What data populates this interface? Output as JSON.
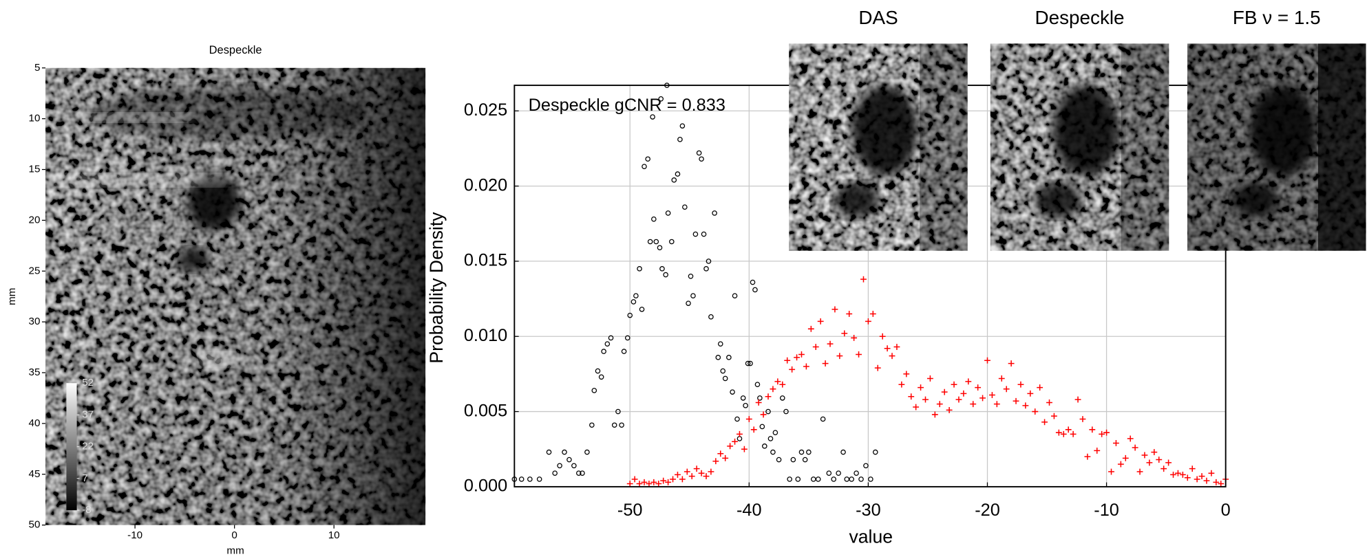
{
  "chart_data": [
    {
      "type": "image",
      "title": "Despeckle",
      "xlabel": "mm",
      "ylabel": "mm",
      "xlim": [
        -19,
        19.2
      ],
      "xticks": [
        -10,
        0,
        10
      ],
      "ylim": [
        5,
        50
      ],
      "yticks": [
        5,
        10,
        15,
        20,
        25,
        30,
        35,
        40,
        45,
        50
      ],
      "y_reversed": true,
      "colormap": "gray",
      "clim": [
        -8,
        52
      ],
      "colorbar_ticks": [
        52,
        37,
        22,
        7,
        -8
      ]
    },
    {
      "type": "scatter",
      "xlabel": "value",
      "ylabel": "Probability Density",
      "annotation": "Despeckle gCNR = 0.833",
      "xlim": [
        -59.7,
        0
      ],
      "xticks": [
        -50,
        -40,
        -30,
        -20,
        -10,
        0
      ],
      "ylim": [
        0,
        0.0267
      ],
      "yticks": [
        {
          "value": 0,
          "label": "0.000"
        },
        0.005,
        {
          "value": 0.01,
          "label": "0.010"
        },
        0.015,
        {
          "value": 0.02,
          "label": "0.020"
        },
        0.025
      ],
      "grid": true,
      "series": [
        {
          "color": "#000000",
          "marker": "circle",
          "x": [
            -59.7,
            -59.1,
            -58.4,
            -57.6,
            -56.8,
            -56.3,
            -55.9,
            -55.5,
            -55.1,
            -54.7,
            -54.3,
            -54.0,
            -53.6,
            -53.2,
            -53.0,
            -52.7,
            -52.4,
            -52.2,
            -51.9,
            -51.6,
            -51.3,
            -51.0,
            -50.7,
            -50.5,
            -50.2,
            -50.0,
            -49.7,
            -49.5,
            -49.2,
            -49.0,
            -48.8,
            -48.5,
            -48.3,
            -48.1,
            -48.0,
            -47.8,
            -47.5,
            -47.4,
            -47.3,
            -47.0,
            -46.9,
            -46.8,
            -46.5,
            -46.3,
            -46.0,
            -45.8,
            -45.6,
            -45.4,
            -45.1,
            -44.9,
            -44.7,
            -44.5,
            -44.2,
            -44.0,
            -43.8,
            -43.6,
            -43.4,
            -43.2,
            -42.9,
            -42.6,
            -42.4,
            -42.2,
            -42.0,
            -41.7,
            -41.4,
            -41.2,
            -41.0,
            -40.8,
            -40.5,
            -40.3,
            -40.1,
            -39.9,
            -39.7,
            -39.5,
            -39.3,
            -39.1,
            -38.9,
            -38.7,
            -38.4,
            -38.2,
            -38.0,
            -37.8,
            -37.5,
            -37.2,
            -36.9,
            -36.6,
            -36.3,
            -35.9,
            -35.6,
            -35.3,
            -35.0,
            -34.6,
            -34.2,
            -33.8,
            -33.3,
            -32.9,
            -32.5,
            -32.1,
            -31.8,
            -31.4,
            -31.0,
            -30.6,
            -30.2,
            -29.8,
            -29.4
          ],
          "values": [
            0.0005,
            0.0005,
            0.0005,
            0.0005,
            0.0023,
            0.0009,
            0.0014,
            0.0023,
            0.0018,
            0.0014,
            0.0009,
            0.0009,
            0.0023,
            0.0041,
            0.0064,
            0.0077,
            0.0073,
            0.009,
            0.0095,
            0.0099,
            0.0041,
            0.005,
            0.0041,
            0.009,
            0.0099,
            0.0114,
            0.0123,
            0.0127,
            0.0145,
            0.0118,
            0.0213,
            0.0218,
            0.0163,
            0.0246,
            0.0178,
            0.0163,
            0.0159,
            0.0258,
            0.0145,
            0.0141,
            0.0267,
            0.0182,
            0.0163,
            0.0204,
            0.0208,
            0.0231,
            0.024,
            0.0186,
            0.0122,
            0.014,
            0.0127,
            0.0168,
            0.0222,
            0.0218,
            0.0168,
            0.0145,
            0.015,
            0.0113,
            0.0182,
            0.0086,
            0.0095,
            0.0077,
            0.0072,
            0.0086,
            0.0063,
            0.0127,
            0.0045,
            0.0032,
            0.0059,
            0.0054,
            0.0082,
            0.0082,
            0.0136,
            0.0131,
            0.0068,
            0.0059,
            0.004,
            0.0027,
            0.005,
            0.0032,
            0.0023,
            0.0036,
            0.0018,
            0.0059,
            0.005,
            0.0005,
            0.0018,
            0.0005,
            0.0023,
            0.0018,
            0.0023,
            0.0005,
            0.0005,
            0.0045,
            0.0009,
            0.0005,
            0.0009,
            0.0023,
            0.0005,
            0.0005,
            0.0009,
            0.0005,
            0.0014,
            0.0005,
            0.0023
          ]
        },
        {
          "color": "#ff0000",
          "marker": "plus",
          "x": [
            -50.0,
            -49.6,
            -49.2,
            -48.8,
            -48.4,
            -48.0,
            -47.6,
            -47.2,
            -46.8,
            -46.4,
            -46.0,
            -45.6,
            -45.2,
            -44.8,
            -44.4,
            -44.0,
            -43.6,
            -43.2,
            -42.8,
            -42.4,
            -42.0,
            -41.6,
            -41.2,
            -40.8,
            -40.4,
            -40.0,
            -39.6,
            -39.2,
            -38.8,
            -38.4,
            -38.0,
            -37.6,
            -37.2,
            -36.8,
            -36.4,
            -36.0,
            -35.6,
            -35.2,
            -34.8,
            -34.4,
            -34.0,
            -33.6,
            -33.2,
            -32.8,
            -32.4,
            -32.0,
            -31.6,
            -31.2,
            -30.8,
            -30.4,
            -30.0,
            -29.6,
            -29.2,
            -28.8,
            -28.4,
            -28.0,
            -27.6,
            -27.2,
            -26.8,
            -26.4,
            -26.0,
            -25.6,
            -25.2,
            -24.8,
            -24.4,
            -24.0,
            -23.6,
            -23.2,
            -22.8,
            -22.4,
            -22.0,
            -21.6,
            -21.2,
            -20.8,
            -20.4,
            -20.0,
            -19.6,
            -19.2,
            -18.8,
            -18.4,
            -18.0,
            -17.6,
            -17.2,
            -16.8,
            -16.4,
            -16.0,
            -15.6,
            -15.2,
            -14.8,
            -14.4,
            -14.0,
            -13.6,
            -13.2,
            -12.8,
            -12.4,
            -12.0,
            -11.6,
            -11.2,
            -10.8,
            -10.4,
            -10.0,
            -9.6,
            -9.2,
            -8.8,
            -8.4,
            -8.0,
            -7.6,
            -7.2,
            -6.8,
            -6.4,
            -6.0,
            -5.6,
            -5.2,
            -4.8,
            -4.4,
            -4.0,
            -3.6,
            -3.2,
            -2.8,
            -2.4,
            -2.0,
            -1.6,
            -1.2,
            -0.8,
            -0.4,
            0
          ],
          "values": [
            0.0002,
            0.0005,
            0.0002,
            0.0003,
            0.0002,
            0.0003,
            0.0002,
            0.0004,
            0.0003,
            0.0005,
            0.0008,
            0.0005,
            0.001,
            0.0007,
            0.0012,
            0.0009,
            0.0007,
            0.001,
            0.0017,
            0.0022,
            0.0019,
            0.0027,
            0.003,
            0.0035,
            0.0025,
            0.0045,
            0.0038,
            0.0056,
            0.0048,
            0.006,
            0.0065,
            0.007,
            0.0068,
            0.0084,
            0.0078,
            0.0086,
            0.0088,
            0.008,
            0.0105,
            0.0093,
            0.011,
            0.0082,
            0.0095,
            0.0118,
            0.0087,
            0.0102,
            0.0115,
            0.0099,
            0.0088,
            0.0138,
            0.011,
            0.0115,
            0.0079,
            0.01,
            0.0092,
            0.0087,
            0.0093,
            0.0068,
            0.0075,
            0.006,
            0.0053,
            0.0066,
            0.0058,
            0.0072,
            0.0048,
            0.0055,
            0.0063,
            0.0051,
            0.0068,
            0.0058,
            0.0062,
            0.007,
            0.0055,
            0.0066,
            0.0059,
            0.0084,
            0.0061,
            0.0055,
            0.0072,
            0.0065,
            0.0082,
            0.0057,
            0.0068,
            0.0054,
            0.0062,
            0.005,
            0.0066,
            0.0043,
            0.0056,
            0.0047,
            0.0036,
            0.0035,
            0.0038,
            0.0035,
            0.0058,
            0.0045,
            0.002,
            0.0038,
            0.0024,
            0.0035,
            0.0036,
            0.001,
            0.0029,
            0.0015,
            0.0019,
            0.0032,
            0.0026,
            0.001,
            0.0021,
            0.0016,
            0.0023,
            0.0018,
            0.0012,
            0.0016,
            0.0008,
            0.0009,
            0.0008,
            0.0006,
            0.0012,
            0.0005,
            0.0007,
            0.0004,
            0.0009,
            0.0003,
            0.0002,
            0.0005
          ]
        }
      ]
    }
  ],
  "insets": [
    {
      "title": "DAS"
    },
    {
      "title": "Despeckle"
    },
    {
      "title": "FB ν = 1.5"
    }
  ]
}
